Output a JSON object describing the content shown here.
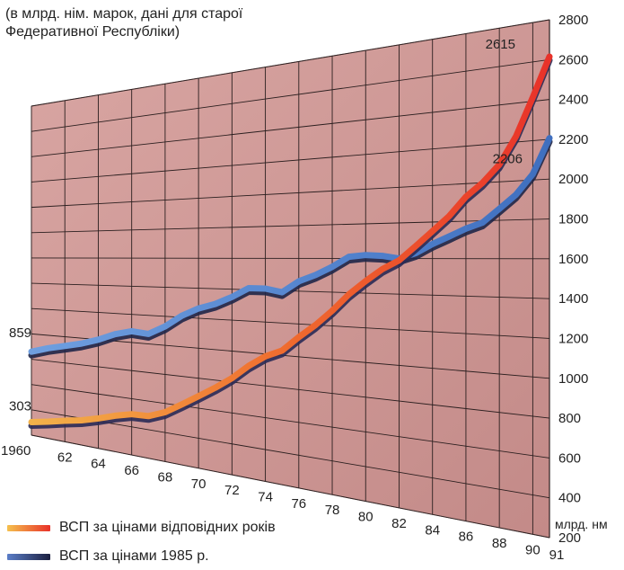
{
  "chart_data": {
    "type": "line",
    "subtitle": [
      "(в млрд. нім. марок, дані для старої",
      "Федеративної Республіки)"
    ],
    "x": [
      1960,
      1961,
      1962,
      1963,
      1964,
      1965,
      1966,
      1967,
      1968,
      1969,
      1970,
      1971,
      1972,
      1973,
      1974,
      1975,
      1976,
      1977,
      1978,
      1979,
      1980,
      1981,
      1982,
      1983,
      1984,
      1985,
      1986,
      1987,
      1988,
      1989,
      1990,
      1991
    ],
    "x_tick_labels": [
      "1960",
      "62",
      "64",
      "66",
      "68",
      "70",
      "72",
      "74",
      "76",
      "78",
      "80",
      "82",
      "84",
      "86",
      "88",
      "90",
      "91"
    ],
    "y_tick_labels": [
      "200",
      "400",
      "600",
      "800",
      "1000",
      "1200",
      "1400",
      "1600",
      "1800",
      "2000",
      "2200",
      "2400",
      "2600",
      "2800"
    ],
    "ylim": [
      0,
      2800
    ],
    "y_unit": "млрд. нм",
    "series": [
      {
        "name": "ВСП за цінами відповідних років",
        "color": "#ee3322",
        "values": [
          303,
          330,
          360,
          385,
          420,
          460,
          490,
          495,
          540,
          610,
          680,
          750,
          825,
          915,
          985,
          1030,
          1120,
          1200,
          1290,
          1390,
          1470,
          1540,
          1590,
          1670,
          1750,
          1830,
          1930,
          2000,
          2090,
          2230,
          2420,
          2615
        ]
      },
      {
        "name": "ВСП за цінами 1985 р.",
        "color": "#2a2f5a",
        "values": [
          859,
          900,
          930,
          960,
          1000,
          1050,
          1080,
          1070,
          1130,
          1210,
          1265,
          1300,
          1350,
          1410,
          1410,
          1390,
          1460,
          1500,
          1550,
          1610,
          1620,
          1615,
          1600,
          1630,
          1680,
          1720,
          1760,
          1790,
          1860,
          1930,
          2030,
          2206
        ]
      }
    ],
    "data_labels": {
      "start_current": "303",
      "start_1985": "859",
      "end_current": "2615",
      "end_1985": "2206"
    }
  }
}
